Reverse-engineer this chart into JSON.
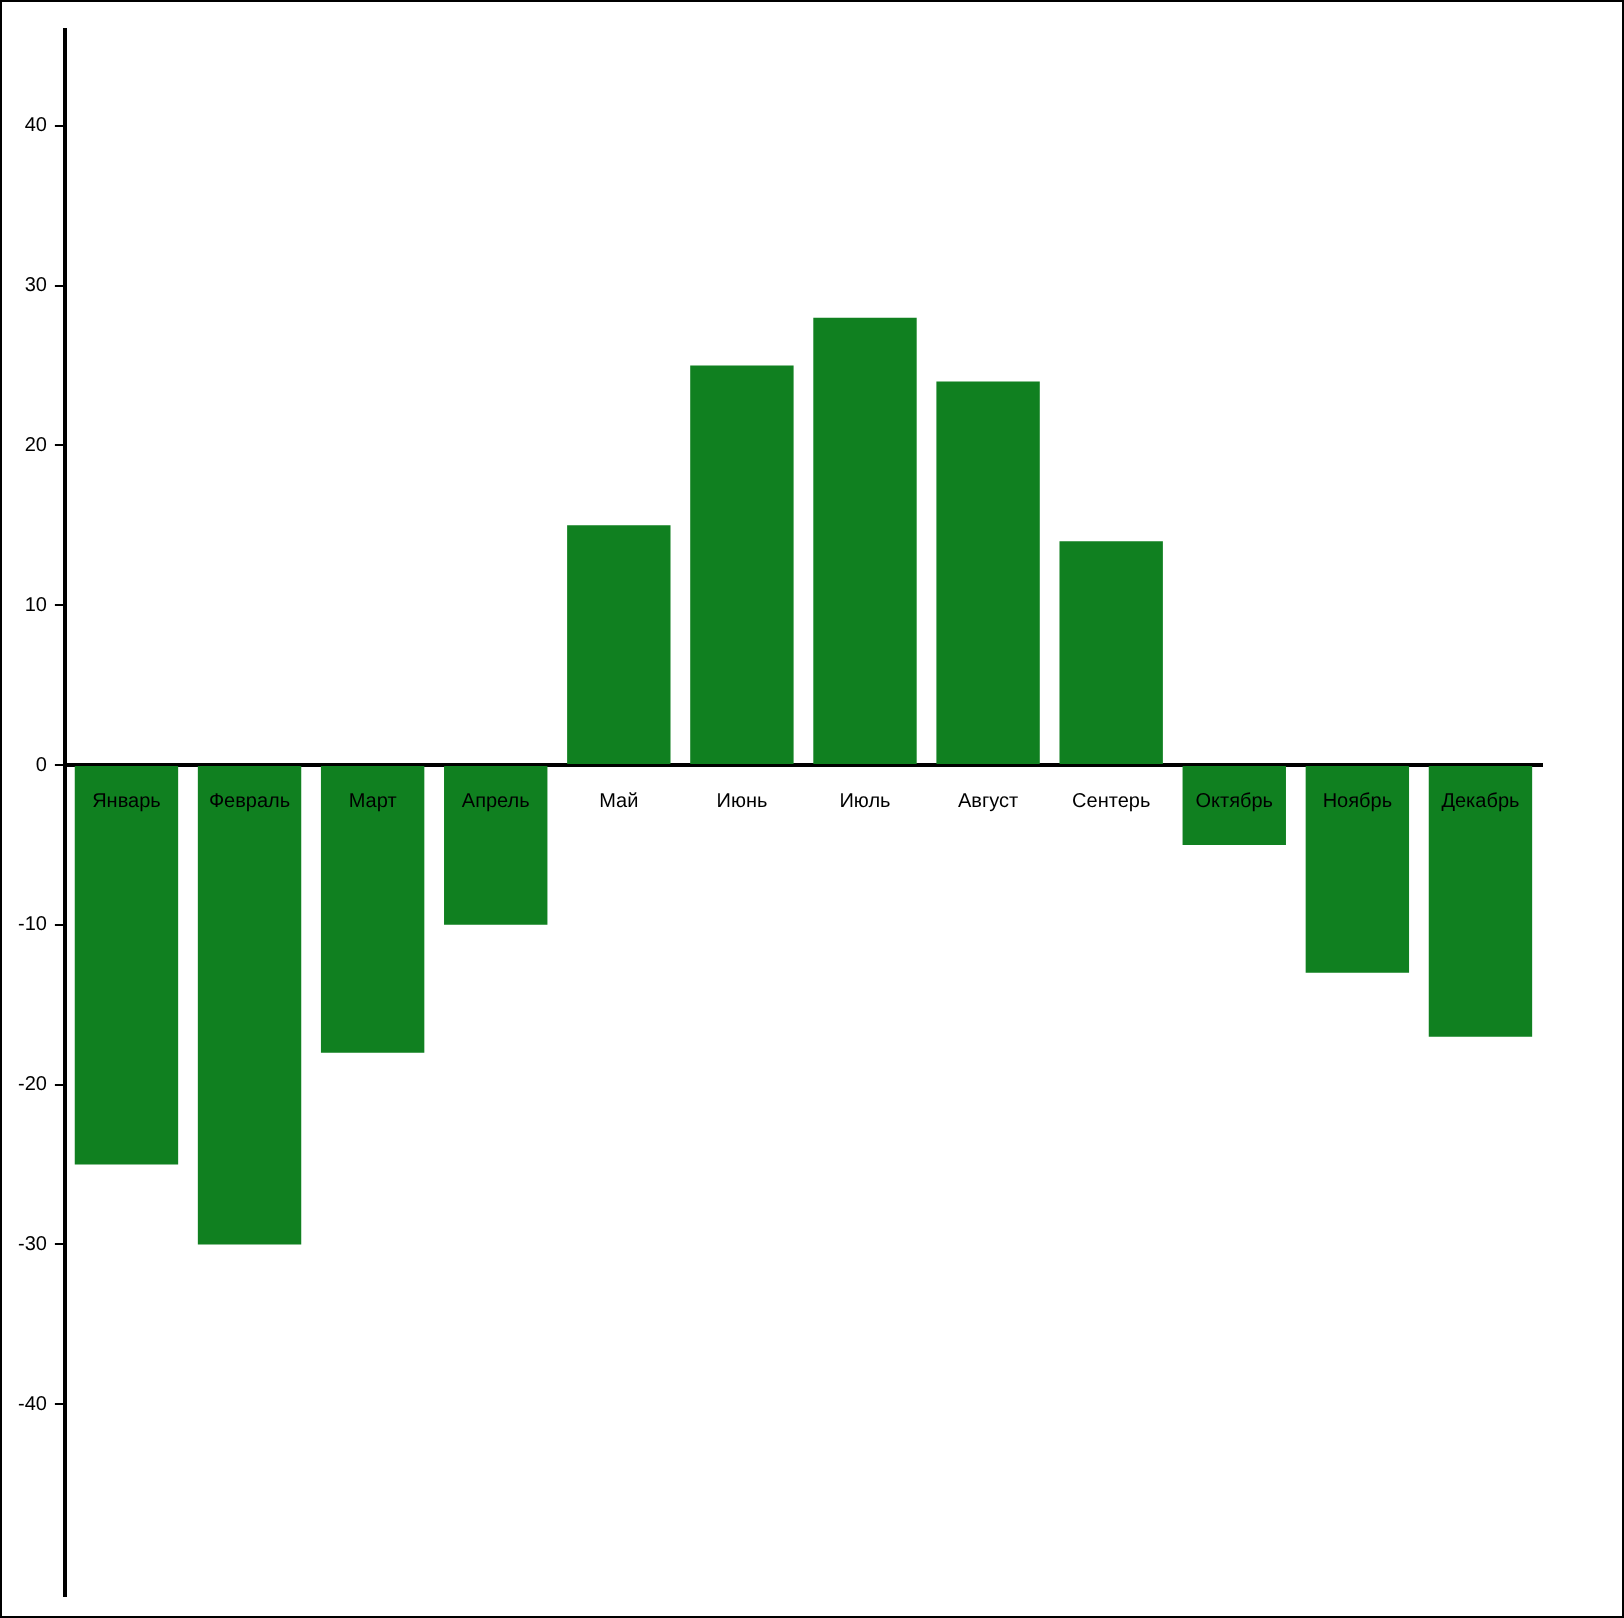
{
  "chart_data": {
    "type": "bar",
    "categories": [
      "Январь",
      "Февраль",
      "Март",
      "Апрель",
      "Май",
      "Июнь",
      "Июль",
      "Август",
      "Сентерь",
      "Октябрь",
      "Ноябрь",
      "Декабрь"
    ],
    "values": [
      -25,
      -30,
      -18,
      -10,
      15,
      25,
      28,
      24,
      14,
      -5,
      -13,
      -17
    ],
    "color": "#108020",
    "ylim": [
      -52,
      46
    ],
    "yticks": [
      -40,
      -30,
      -20,
      -10,
      0,
      10,
      20,
      30,
      40
    ],
    "grid": false,
    "legend": false
  }
}
